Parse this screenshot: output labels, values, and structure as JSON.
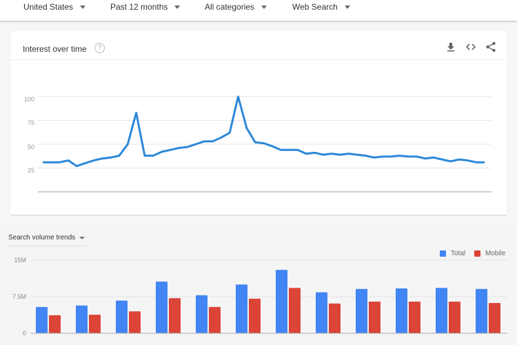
{
  "filters": [
    {
      "label": "United States"
    },
    {
      "label": "Past 12 months"
    },
    {
      "label": "All categories"
    },
    {
      "label": "Web Search"
    }
  ],
  "interest_card": {
    "title": "Interest over time",
    "help_icon": "?",
    "icons": [
      "download-icon",
      "embed-code-icon",
      "share-icon"
    ],
    "y_ticks": [
      "100",
      "75",
      "50",
      "25"
    ]
  },
  "volume_section": {
    "dropdown_label": "Search volume trends",
    "y_ticks": [
      "15M",
      "7.5M",
      "0"
    ],
    "legend": [
      {
        "label": "Total",
        "color": "#4285f4"
      },
      {
        "label": "Mobile",
        "color": "#db4437"
      }
    ]
  },
  "colors": {
    "line": "#2b88d8",
    "total": "#4285f4",
    "mobile": "#db4437"
  },
  "chart_data": [
    {
      "type": "line",
      "title": "Interest over time",
      "xlabel": "",
      "ylabel": "",
      "ylim": [
        0,
        100
      ],
      "y_ticks": [
        25,
        50,
        75,
        100
      ],
      "grid": true,
      "x": [
        1,
        2,
        3,
        4,
        5,
        6,
        7,
        8,
        9,
        10,
        11,
        12,
        13,
        14,
        15,
        16,
        17,
        18,
        19,
        20,
        21,
        22,
        23,
        24,
        25,
        26,
        27,
        28,
        29,
        30,
        31,
        32,
        33,
        34,
        35,
        36,
        37,
        38,
        39,
        40,
        41,
        42,
        43,
        44,
        45,
        46,
        47,
        48,
        49,
        50,
        51,
        52,
        53
      ],
      "values": [
        31,
        31,
        31,
        33,
        27,
        30,
        33,
        35,
        36,
        38,
        50,
        83,
        38,
        38,
        42,
        44,
        46,
        47,
        50,
        53,
        53,
        57,
        62,
        100,
        67,
        52,
        51,
        48,
        44,
        44,
        44,
        40,
        41,
        39,
        40,
        39,
        40,
        39,
        38,
        36,
        37,
        37,
        38,
        37,
        37,
        35,
        36,
        34,
        32,
        34,
        33,
        31,
        31
      ]
    },
    {
      "type": "bar",
      "title": "Search volume trends",
      "xlabel": "",
      "ylabel": "",
      "ylim": [
        0,
        15000000
      ],
      "y_ticks": [
        "0",
        "7.5M",
        "15M"
      ],
      "legend_position": "top-right",
      "categories": [
        "1",
        "2",
        "3",
        "4",
        "5",
        "6",
        "7",
        "8",
        "9",
        "10",
        "11",
        "12"
      ],
      "series": [
        {
          "name": "Total",
          "values": [
            5400000,
            5700000,
            6700000,
            10600000,
            7800000,
            10000000,
            13000000,
            8400000,
            9100000,
            9200000,
            9300000,
            9100000
          ]
        },
        {
          "name": "Mobile",
          "values": [
            3700000,
            3800000,
            4500000,
            7200000,
            5400000,
            7100000,
            9300000,
            6100000,
            6500000,
            6500000,
            6500000,
            6200000
          ]
        }
      ]
    }
  ]
}
